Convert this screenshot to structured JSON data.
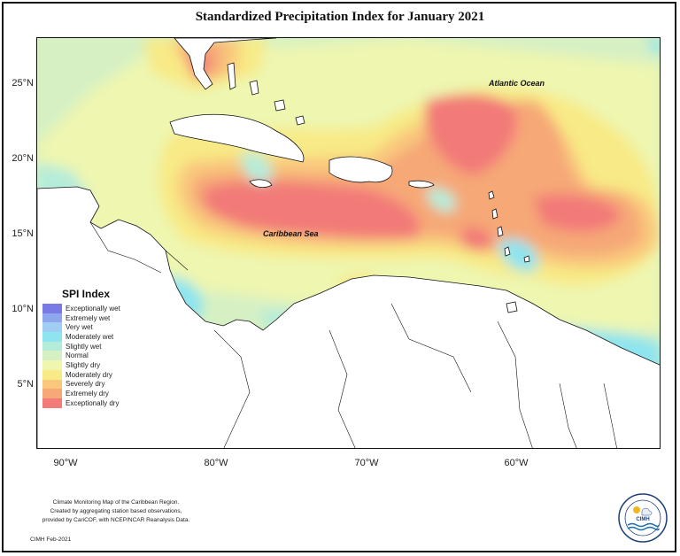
{
  "title": "Standardized Precipitation Index for January 2021",
  "map": {
    "labels": {
      "atlantic": "Atlantic Ocean",
      "caribbean": "Caribbean Sea"
    },
    "latitude_ticks": [
      "25°N",
      "20°N",
      "15°N",
      "10°N",
      "5°N"
    ],
    "longitude_ticks": [
      "90°W",
      "80°W",
      "70°W",
      "60°W"
    ],
    "extent": {
      "lon_min": -92,
      "lon_max": -50.5,
      "lat_min": 0.5,
      "lat_max": 28
    }
  },
  "legend": {
    "title": "SPI Index",
    "items": [
      {
        "label": "Exceptionally wet",
        "color": "#7a7ae6"
      },
      {
        "label": "Extremely wet",
        "color": "#8da6ec"
      },
      {
        "label": "Very wet",
        "color": "#9fcdf4"
      },
      {
        "label": "Moderately wet",
        "color": "#8ee4ef"
      },
      {
        "label": "Slightly wet",
        "color": "#b5ecd9"
      },
      {
        "label": "Normal",
        "color": "#d6f0c4"
      },
      {
        "label": "Slightly dry",
        "color": "#eef6b0"
      },
      {
        "label": "Moderately dry",
        "color": "#f8ea86"
      },
      {
        "label": "Severely dry",
        "color": "#f9c87d"
      },
      {
        "label": "Extremely dry",
        "color": "#f6a877"
      },
      {
        "label": "Exceptionally dry",
        "color": "#f27a78"
      }
    ]
  },
  "credits": {
    "line1": "Climate Monitoring Map of the Caribbean Region.",
    "line2": "Created by aggregating station based observations,",
    "line3": "provided by CariCOF, with NCEP/NCAR Reanalysis Data.",
    "date": "CIMH Feb-2021"
  },
  "logo": {
    "text": "CIMH",
    "icon": "cimh-logo-icon"
  }
}
